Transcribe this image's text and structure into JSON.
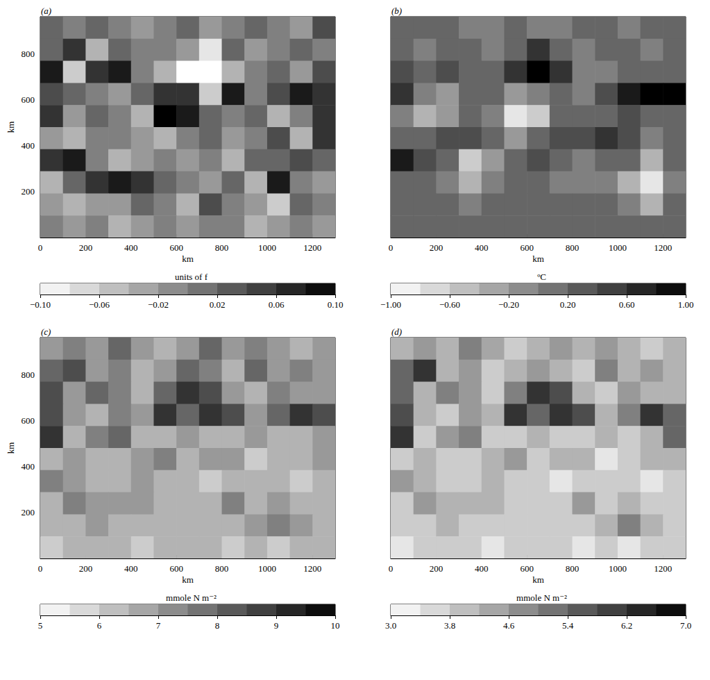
{
  "chart_data": [
    {
      "type": "heatmap",
      "annotation": "(a)",
      "x_label": "km",
      "y_label": "km",
      "xlim": [
        0,
        1300
      ],
      "ylim": [
        0,
        960
      ],
      "xticks": [
        0,
        200,
        400,
        600,
        800,
        1000,
        1200
      ],
      "yticks": [
        200,
        400,
        600,
        800
      ],
      "colors": [
        "#ffffff",
        "#000000"
      ],
      "x": [
        50,
        150,
        250,
        350,
        450,
        550,
        650,
        750,
        850,
        950,
        1050,
        1150,
        1250
      ],
      "y": [
        912,
        816,
        720,
        624,
        528,
        432,
        336,
        240,
        144,
        48
      ],
      "values": [
        [
          0.02,
          0,
          0.02,
          0,
          -0.02,
          0,
          0.02,
          -0.02,
          0,
          0.02,
          0,
          -0.02,
          0.04
        ],
        [
          0.02,
          0.06,
          -0.04,
          0.02,
          0,
          0,
          -0.02,
          -0.08,
          0.02,
          -0.02,
          0,
          0.02,
          0
        ],
        [
          0.08,
          -0.06,
          0.06,
          0.08,
          0,
          -0.04,
          -0.1,
          -0.1,
          -0.04,
          0,
          0.02,
          -0.02,
          0.04
        ],
        [
          0.04,
          0.02,
          0,
          -0.02,
          0.02,
          0.06,
          0.06,
          -0.06,
          0.08,
          0,
          0.04,
          0.08,
          0.06
        ],
        [
          0.06,
          -0.02,
          0.02,
          0,
          -0.04,
          0.1,
          0.08,
          0.02,
          0,
          0.02,
          -0.04,
          0,
          0.06
        ],
        [
          -0.02,
          -0.04,
          0,
          0,
          -0.02,
          -0.04,
          0,
          0.02,
          -0.02,
          0,
          0.04,
          -0.04,
          0.06
        ],
        [
          0.06,
          0.08,
          0,
          -0.04,
          -0.02,
          0,
          -0.02,
          0,
          -0.04,
          0.02,
          0.02,
          0.04,
          0.02
        ],
        [
          -0.04,
          0.02,
          0.06,
          0.08,
          0.06,
          0.02,
          0,
          -0.02,
          0.02,
          -0.04,
          0.08,
          0,
          -0.02
        ],
        [
          -0.02,
          -0.04,
          -0.02,
          -0.02,
          0.02,
          0,
          -0.04,
          0.04,
          0,
          -0.02,
          -0.06,
          0.02,
          0
        ],
        [
          0,
          -0.02,
          0,
          -0.04,
          -0.02,
          0,
          -0.02,
          0,
          0,
          -0.04,
          -0.02,
          0,
          -0.02
        ]
      ],
      "colorbar": {
        "label": "units of f",
        "range": [
          -0.1,
          0.1
        ],
        "ticks": [
          {
            "value": -0.1,
            "label": "−0.10"
          },
          {
            "value": -0.06,
            "label": "−0.06"
          },
          {
            "value": -0.02,
            "label": "−0.02"
          },
          {
            "value": 0.02,
            "label": "0.02"
          },
          {
            "value": 0.06,
            "label": "0.06"
          },
          {
            "value": 0.1,
            "label": "0.10"
          }
        ]
      }
    },
    {
      "type": "heatmap",
      "annotation": "(b)",
      "x_label": "km",
      "tick_labels": "x",
      "xlim": [
        0,
        1300
      ],
      "ylim": [
        0,
        960
      ],
      "xticks": [
        0,
        200,
        400,
        600,
        800,
        1000,
        1200
      ],
      "yticks": [
        200,
        400,
        600,
        800
      ],
      "colors": [
        "#ffffff",
        "#000000"
      ],
      "x": [
        50,
        150,
        250,
        350,
        450,
        550,
        650,
        750,
        850,
        950,
        1050,
        1150,
        1250
      ],
      "y": [
        912,
        816,
        720,
        624,
        528,
        432,
        336,
        240,
        144,
        48
      ],
      "values": [
        [
          0.2,
          0.2,
          0.2,
          0,
          0,
          0.2,
          0,
          0,
          0.2,
          0.2,
          0,
          0.2,
          0.2
        ],
        [
          0.2,
          0,
          0.2,
          0.2,
          0,
          0.2,
          0.6,
          0.2,
          0,
          0.2,
          0.2,
          0,
          0.2
        ],
        [
          0.4,
          0.2,
          0.4,
          0.2,
          0.2,
          0.6,
          1.0,
          0.6,
          0,
          0,
          0.2,
          0.2,
          0.2
        ],
        [
          0.6,
          0,
          -0.2,
          0.2,
          0.2,
          -0.2,
          0,
          0.2,
          0,
          0.4,
          0.8,
          1.0,
          1.0
        ],
        [
          0,
          -0.4,
          -0.2,
          0.2,
          0,
          -0.8,
          -0.6,
          0.2,
          0.2,
          0.2,
          0.4,
          0.2,
          0.2
        ],
        [
          0.2,
          0.2,
          0.4,
          0.4,
          0.2,
          -0.2,
          0.2,
          0.4,
          0.4,
          0.6,
          0.4,
          0,
          0.2
        ],
        [
          0.8,
          0.4,
          0.2,
          -0.6,
          -0.2,
          0.2,
          0.4,
          0.2,
          0,
          0.2,
          0.2,
          -0.4,
          0.2
        ],
        [
          0.2,
          0.2,
          0,
          -0.4,
          0,
          0.2,
          0.2,
          0,
          0,
          0,
          -0.4,
          -0.8,
          0
        ],
        [
          0.2,
          0.2,
          0.2,
          0,
          0.2,
          0.2,
          0.2,
          0.2,
          0.2,
          0.2,
          0,
          -0.4,
          0.2
        ],
        [
          0.2,
          0.2,
          0.2,
          0.2,
          0.2,
          0.2,
          0.2,
          0.2,
          0.2,
          0.2,
          0.2,
          0.2,
          0.2
        ]
      ],
      "colorbar": {
        "label": "ºC",
        "range": [
          -1.0,
          1.0
        ],
        "ticks": [
          {
            "value": -1.0,
            "label": "−1.00"
          },
          {
            "value": -0.6,
            "label": "−0.60"
          },
          {
            "value": -0.2,
            "label": "−0.20"
          },
          {
            "value": 0.2,
            "label": "0.20"
          },
          {
            "value": 0.6,
            "label": "0.60"
          },
          {
            "value": 1.0,
            "label": "1.00"
          }
        ]
      }
    },
    {
      "type": "heatmap",
      "annotation": "(c)",
      "x_label": "km",
      "y_label": "km",
      "xlim": [
        0,
        1300
      ],
      "ylim": [
        0,
        960
      ],
      "xticks": [
        0,
        200,
        400,
        600,
        800,
        1000,
        1200
      ],
      "yticks": [
        200,
        400,
        600,
        800
      ],
      "colors": [
        "#ffffff",
        "#000000"
      ],
      "x": [
        50,
        150,
        250,
        350,
        450,
        550,
        650,
        750,
        850,
        950,
        1050,
        1150,
        1250
      ],
      "y": [
        912,
        816,
        720,
        624,
        528,
        432,
        336,
        240,
        144,
        48
      ],
      "values": [
        [
          7,
          7.5,
          7,
          8,
          7,
          6.5,
          7,
          8,
          7,
          7.5,
          7,
          6.5,
          7
        ],
        [
          8,
          8.5,
          7,
          7.5,
          6.5,
          7,
          8,
          7.5,
          6.5,
          8,
          7,
          7.5,
          7
        ],
        [
          8.5,
          7,
          8,
          7.5,
          6.5,
          8,
          9,
          8.5,
          7,
          6.5,
          7.5,
          7,
          7
        ],
        [
          8.5,
          7,
          6.5,
          7.5,
          7,
          9,
          8,
          9,
          8.5,
          7,
          8,
          9,
          8.5
        ],
        [
          9,
          6.5,
          7.5,
          8,
          6.5,
          6.5,
          7,
          6.5,
          6.5,
          7,
          6.5,
          6.5,
          7
        ],
        [
          6.5,
          7,
          6.5,
          6.5,
          7,
          7.5,
          6.5,
          7,
          7,
          6,
          6.5,
          6.5,
          7
        ],
        [
          7.5,
          7,
          6.5,
          6.5,
          7,
          6.5,
          6.5,
          6,
          6.5,
          6.5,
          6.5,
          6,
          6.5
        ],
        [
          6.5,
          7.5,
          7,
          7,
          7,
          6.5,
          6.5,
          6.5,
          7.5,
          6.5,
          7,
          6.5,
          6.5
        ],
        [
          6.5,
          6.5,
          7,
          6.5,
          6.5,
          6.5,
          6.5,
          6.5,
          6.5,
          7,
          7.5,
          7,
          6.5
        ],
        [
          6,
          6.5,
          6.5,
          6.5,
          6,
          6.5,
          6.5,
          6.5,
          6,
          6.5,
          6,
          6.5,
          6.5
        ]
      ],
      "colorbar": {
        "label": "mmole N m⁻²",
        "range": [
          5,
          10
        ],
        "ticks": [
          5,
          6,
          7,
          8,
          9,
          10
        ]
      }
    },
    {
      "type": "heatmap",
      "annotation": "(d)",
      "x_label": "km",
      "tick_labels": "x",
      "xlim": [
        0,
        1300
      ],
      "ylim": [
        0,
        960
      ],
      "xticks": [
        0,
        200,
        400,
        600,
        800,
        1000,
        1200
      ],
      "yticks": [
        200,
        400,
        600,
        800
      ],
      "colors": [
        "#ffffff",
        "#000000"
      ],
      "x": [
        50,
        150,
        250,
        350,
        450,
        550,
        650,
        750,
        850,
        950,
        1050,
        1150,
        1250
      ],
      "y": [
        912,
        816,
        720,
        624,
        528,
        432,
        336,
        240,
        144,
        48
      ],
      "values": [
        [
          4.2,
          4.6,
          4.2,
          5.0,
          4.4,
          3.8,
          4.2,
          4.6,
          4.2,
          4.6,
          4.2,
          3.8,
          4.2
        ],
        [
          5.4,
          6.2,
          4.2,
          4.6,
          3.8,
          4.2,
          4.6,
          4.2,
          3.8,
          5.0,
          4.2,
          4.6,
          4.2
        ],
        [
          5.4,
          4.2,
          5.0,
          4.6,
          3.8,
          5.0,
          6.2,
          5.8,
          4.2,
          3.8,
          4.6,
          4.2,
          4.2
        ],
        [
          5.8,
          4.2,
          3.8,
          4.6,
          4.2,
          6.2,
          5.4,
          6.2,
          5.8,
          4.2,
          5.0,
          6.2,
          5.4
        ],
        [
          6.2,
          3.8,
          4.6,
          5.0,
          3.8,
          3.8,
          4.2,
          3.8,
          3.8,
          4.2,
          3.8,
          4.2,
          5.4
        ],
        [
          3.8,
          4.2,
          3.8,
          3.8,
          4.2,
          4.6,
          3.8,
          4.2,
          4.2,
          3.4,
          3.8,
          4.2,
          4.2
        ],
        [
          4.6,
          4.2,
          3.8,
          3.8,
          4.2,
          3.8,
          3.8,
          3.4,
          3.8,
          3.8,
          3.8,
          3.4,
          3.8
        ],
        [
          3.8,
          4.6,
          4.2,
          4.2,
          4.2,
          3.8,
          3.8,
          3.8,
          4.6,
          3.8,
          4.2,
          3.8,
          3.8
        ],
        [
          3.8,
          3.8,
          4.2,
          3.8,
          3.8,
          3.8,
          3.8,
          3.8,
          3.8,
          4.2,
          5.0,
          4.2,
          3.8
        ],
        [
          3.4,
          3.8,
          3.8,
          3.8,
          3.4,
          3.8,
          3.8,
          3.8,
          3.4,
          3.8,
          3.4,
          3.8,
          3.8
        ]
      ],
      "colorbar": {
        "label": "mmole N m⁻²",
        "range": [
          3.0,
          7.0
        ],
        "ticks": [
          {
            "value": 3.0,
            "label": "3.0"
          },
          {
            "value": 3.8,
            "label": "3.8"
          },
          {
            "value": 4.6,
            "label": "4.6"
          },
          {
            "value": 5.4,
            "label": "5.4"
          },
          {
            "value": 6.2,
            "label": "6.2"
          },
          {
            "value": 7.0,
            "label": "7.0"
          }
        ]
      }
    }
  ]
}
